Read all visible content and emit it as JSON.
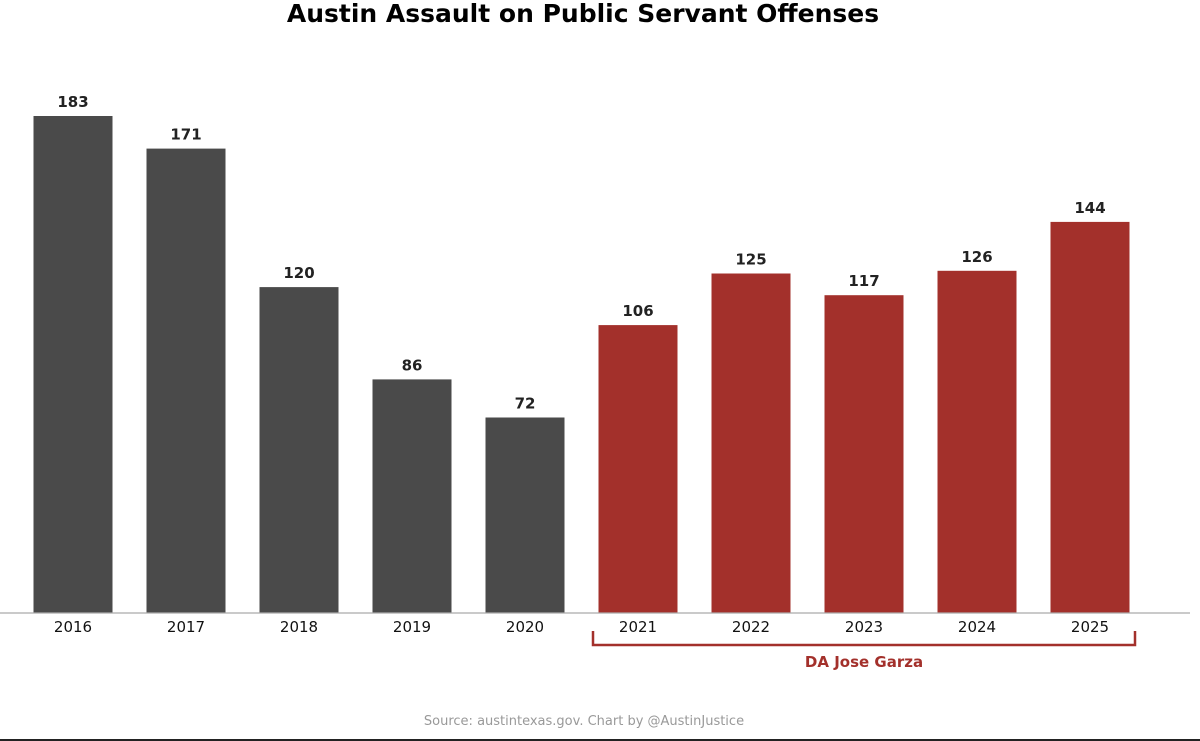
{
  "chart_data": {
    "type": "bar",
    "title": "Austin Assault on Public Servant Offenses",
    "xlabel": "",
    "ylabel": "",
    "ylim": [
      0,
      183
    ],
    "grid": false,
    "categories": [
      "2016",
      "2017",
      "2018",
      "2019",
      "2020",
      "2021",
      "2022",
      "2023",
      "2024",
      "2025"
    ],
    "values": [
      183,
      171,
      120,
      86,
      72,
      106,
      125,
      117,
      126,
      144
    ],
    "value_labels": [
      "183",
      "171",
      "120",
      "86",
      "72",
      "106",
      "125",
      "117",
      "126",
      "144"
    ],
    "annotation": {
      "label": "DA Jose Garza",
      "spans": [
        "2021",
        "2025"
      ]
    },
    "source": "Source: austintexas.gov. Chart by @AustinJustice"
  },
  "colors": {
    "before": "#4a4a4a",
    "after": "#a3302b",
    "axis": "#aaaaaa"
  }
}
